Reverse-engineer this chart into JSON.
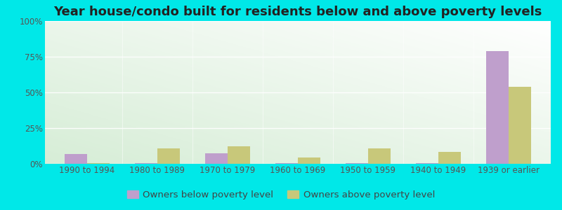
{
  "title": "Year house/condo built for residents below and above poverty levels",
  "categories": [
    "1990 to 1994",
    "1980 to 1989",
    "1970 to 1979",
    "1960 to 1969",
    "1950 to 1959",
    "1940 to 1949",
    "1939 or earlier"
  ],
  "below_poverty": [
    7.0,
    0.3,
    7.5,
    0.3,
    0.3,
    0.3,
    79.0
  ],
  "above_poverty": [
    0.5,
    11.0,
    12.5,
    4.5,
    11.0,
    8.5,
    54.0
  ],
  "below_color": "#bf9fcc",
  "above_color": "#c8c87a",
  "background_grad_left": "#d4edc4",
  "background_grad_right": "#edf8e8",
  "outer_bg": "#00e8e8",
  "ylabel_ticks": [
    "0%",
    "25%",
    "50%",
    "75%",
    "100%"
  ],
  "ylabel_values": [
    0,
    25,
    50,
    75,
    100
  ],
  "ylim": [
    0,
    100
  ],
  "bar_width": 0.32,
  "legend_below": "Owners below poverty level",
  "legend_above": "Owners above poverty level",
  "title_fontsize": 13,
  "tick_fontsize": 8.5,
  "legend_fontsize": 9.5
}
